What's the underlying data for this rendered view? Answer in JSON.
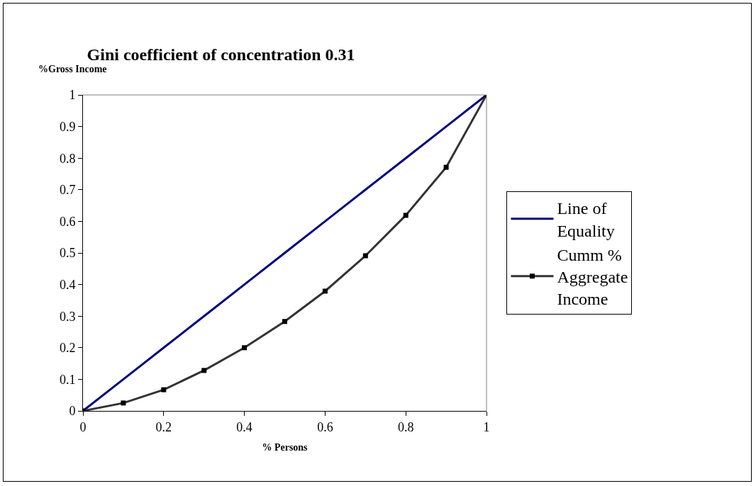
{
  "chart_data": {
    "type": "line",
    "title": "Gini coefficient of concentration 0.31",
    "xlabel": "% Persons",
    "ylabel": "%Gross Income",
    "x": [
      0,
      0.1,
      0.2,
      0.3,
      0.4,
      0.5,
      0.6,
      0.7,
      0.8,
      0.9,
      1
    ],
    "series": [
      {
        "name": "Line of Equality",
        "color": "#000080",
        "marker": "none",
        "values": [
          0,
          0.1,
          0.2,
          0.3,
          0.4,
          0.5,
          0.6,
          0.7,
          0.8,
          0.9,
          1
        ]
      },
      {
        "name": "Cumm % Aggregate Income",
        "color": "#333333",
        "marker": "square",
        "values": [
          0,
          0.025,
          0.067,
          0.128,
          0.2,
          0.283,
          0.379,
          0.491,
          0.619,
          0.771,
          1
        ]
      }
    ],
    "xlim": [
      0,
      1
    ],
    "xticks": [
      0,
      0.2,
      0.4,
      0.6,
      0.8,
      1
    ],
    "ylim": [
      0,
      1
    ],
    "yticks": [
      0,
      0.1,
      0.2,
      0.3,
      0.4,
      0.5,
      0.6,
      0.7,
      0.8,
      0.9,
      1
    ],
    "grid": false,
    "legend": "right",
    "line_style": "solid"
  }
}
